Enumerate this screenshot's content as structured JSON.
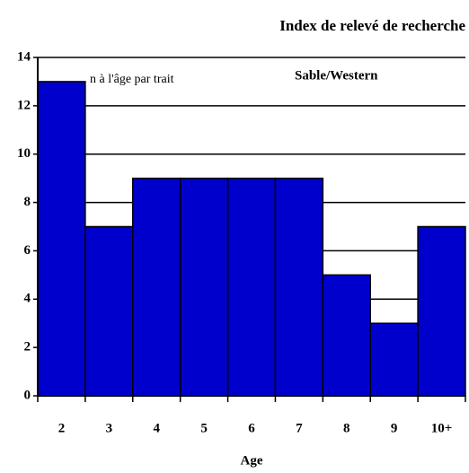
{
  "chart_data": {
    "type": "bar",
    "title": "Index de relevé de recherche",
    "annotations": [
      "n à l'âge par trait",
      "Sable/Western"
    ],
    "x_label": "Age",
    "categories": [
      "2",
      "3",
      "4",
      "5",
      "6",
      "7",
      "8",
      "9",
      "10+"
    ],
    "values": [
      13,
      7,
      9,
      9,
      9,
      9,
      5,
      3,
      7
    ],
    "color": "#0000cc",
    "ylim": [
      0,
      14
    ],
    "yticks": [
      0,
      2,
      4,
      6,
      8,
      10,
      12,
      14
    ],
    "grid": true
  }
}
